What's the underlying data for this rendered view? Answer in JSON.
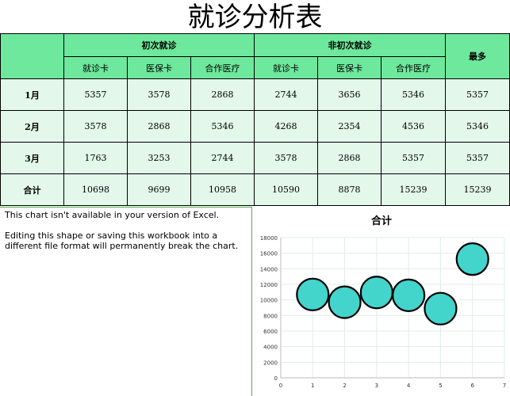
{
  "title": "就诊分析表",
  "table": {
    "group1": "初次就诊",
    "group2": "非初次就诊",
    "max_header": "最多",
    "sub_headers": [
      "就诊卡",
      "医保卡",
      "合作医疗",
      "就诊卡",
      "医保卡",
      "合作医疗"
    ],
    "rows": [
      {
        "label": "1月",
        "values": [
          "5357",
          "3578",
          "2868",
          "2744",
          "3656",
          "5346"
        ],
        "max": "5357"
      },
      {
        "label": "2月",
        "values": [
          "3578",
          "2868",
          "5346",
          "4268",
          "2354",
          "4536"
        ],
        "max": "5346"
      },
      {
        "label": "3月",
        "values": [
          "1763",
          "3253",
          "2744",
          "3578",
          "2868",
          "5357"
        ],
        "max": "5357"
      },
      {
        "label": "合计",
        "values": [
          "10698",
          "9699",
          "10958",
          "10590",
          "8878",
          "15239"
        ],
        "max": "15239"
      }
    ]
  },
  "notice": {
    "line1": "This chart isn't available in your version of Excel.",
    "line2": "Editing this shape or saving this workbook into a different file format will permanently break the chart."
  },
  "chart_data": {
    "type": "scatter",
    "title": "合计",
    "x": [
      1,
      2,
      3,
      4,
      5,
      6
    ],
    "y": [
      10698,
      9699,
      10958,
      10590,
      8878,
      15239
    ],
    "xlim": [
      0,
      7
    ],
    "ylim": [
      0,
      18000
    ],
    "xticks": [
      "0",
      "1",
      "2",
      "3",
      "4",
      "5",
      "6",
      "7"
    ],
    "yticks": [
      "0",
      "2000",
      "4000",
      "6000",
      "8000",
      "10000",
      "12000",
      "14000",
      "16000",
      "18000"
    ],
    "grid": true,
    "marker_color": "#43d4cc",
    "marker_edge": "#000000"
  }
}
